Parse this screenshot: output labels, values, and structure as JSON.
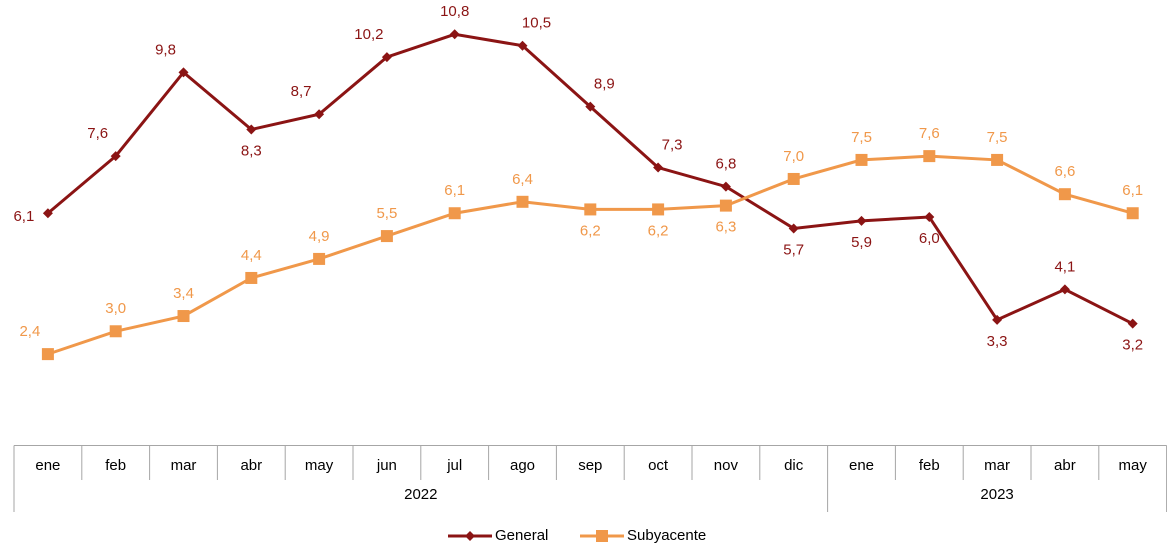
{
  "chart_data": {
    "type": "line",
    "categories": [
      "ene",
      "feb",
      "mar",
      "abr",
      "may",
      "jun",
      "jul",
      "ago",
      "sep",
      "oct",
      "nov",
      "dic",
      "ene",
      "feb",
      "mar",
      "abr",
      "may"
    ],
    "groups": [
      {
        "label": "2022",
        "size": 12
      },
      {
        "label": "2023",
        "size": 5
      }
    ],
    "ylim": [
      0,
      11.7
    ],
    "series": [
      {
        "name": "General",
        "color": "#8b1414",
        "marker": "diamond",
        "values": [
          6.1,
          7.6,
          9.8,
          8.3,
          8.7,
          10.2,
          10.8,
          10.5,
          8.9,
          7.3,
          6.8,
          5.7,
          5.9,
          6.0,
          3.3,
          4.1,
          3.2
        ],
        "value_labels": [
          "6,1",
          "7,6",
          "9,8",
          "8,3",
          "8,7",
          "10,2",
          "10,8",
          "10,5",
          "8,9",
          "7,3",
          "6,8",
          "5,7",
          "5,9",
          "6,0",
          "3,3",
          "4,1",
          "3,2"
        ]
      },
      {
        "name": "Subyacente",
        "color": "#f0984a",
        "marker": "square",
        "values": [
          2.4,
          3.0,
          3.4,
          4.4,
          4.9,
          5.5,
          6.1,
          6.4,
          6.2,
          6.2,
          6.3,
          7.0,
          7.5,
          7.6,
          7.5,
          6.6,
          6.1
        ],
        "value_labels": [
          "2,4",
          "3,0",
          "3,4",
          "4,4",
          "4,9",
          "5,5",
          "6,1",
          "6,4",
          "6,2",
          "6,2",
          "6,3",
          "7,0",
          "7,5",
          "7,6",
          "7,5",
          "6,6",
          "6,1"
        ]
      }
    ],
    "legend": "bottom"
  }
}
